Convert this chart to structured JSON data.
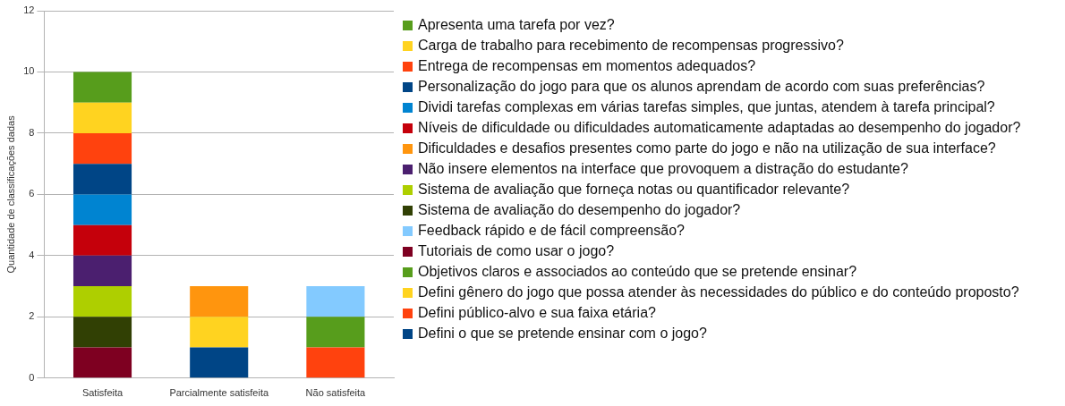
{
  "chart_data": {
    "type": "bar",
    "stacked": true,
    "ylabel": "Quantidade de classificações dadas",
    "categories": [
      "Satisfeita",
      "Parcialmente satisfeita",
      "Não satisfeita"
    ],
    "ylim": [
      0,
      12
    ],
    "yticks": [
      0,
      2,
      4,
      6,
      8,
      10,
      12
    ],
    "grid": "y",
    "legend": "right",
    "series": [
      {
        "name": "Defini o que se pretende ensinar com o jogo?",
        "color": "#004586",
        "values": [
          0,
          1,
          0
        ]
      },
      {
        "name": "Defini público-alvo e sua faixa etária?",
        "color": "#ff420e",
        "values": [
          0,
          0,
          1
        ]
      },
      {
        "name": "Defini gênero do jogo que possa atender às necessidades do público e do conteúdo proposto?",
        "color": "#ffd320",
        "values": [
          0,
          1,
          0
        ]
      },
      {
        "name": "Objetivos claros e associados ao conteúdo que se pretende ensinar?",
        "color": "#579d1c",
        "values": [
          0,
          0,
          1
        ]
      },
      {
        "name": "Tutoriais de como usar o jogo?",
        "color": "#7e0021",
        "values": [
          1,
          0,
          0
        ]
      },
      {
        "name": "Feedback rápido e de fácil compreensão?",
        "color": "#83caff",
        "values": [
          0,
          0,
          1
        ]
      },
      {
        "name": "Sistema de avaliação do desempenho do jogador?",
        "color": "#314004",
        "values": [
          1,
          0,
          0
        ]
      },
      {
        "name": "Sistema de avaliação que forneça notas ou quantificador relevante?",
        "color": "#aecf00",
        "values": [
          1,
          0,
          0
        ]
      },
      {
        "name": "Não insere elementos na interface que provoquem a distração do estudante?",
        "color": "#4b1f6f",
        "values": [
          1,
          0,
          0
        ]
      },
      {
        "name": "Dificuldades e desafios presentes como parte do jogo e não na utilização de sua interface?",
        "color": "#ff950e",
        "values": [
          0,
          1,
          0
        ]
      },
      {
        "name": "Níveis de dificuldade ou dificuldades automaticamente adaptadas ao desempenho do jogador?",
        "color": "#c5000b",
        "values": [
          1,
          0,
          0
        ]
      },
      {
        "name": "Dividi tarefas complexas em várias tarefas simples, que juntas, atendem à tarefa principal?",
        "color": "#0084d1",
        "values": [
          1,
          0,
          0
        ]
      },
      {
        "name": "Personalização do jogo para que os alunos aprendam de acordo com suas preferências?",
        "color": "#004586",
        "values": [
          1,
          0,
          0
        ]
      },
      {
        "name": "Entrega de recompensas em momentos adequados?",
        "color": "#ff420e",
        "values": [
          1,
          0,
          0
        ]
      },
      {
        "name": "Carga de trabalho para recebimento de recompensas progressivo?",
        "color": "#ffd320",
        "values": [
          1,
          0,
          0
        ]
      },
      {
        "name": "Apresenta uma tarefa por vez?",
        "color": "#579d1c",
        "values": [
          1,
          0,
          0
        ]
      }
    ]
  }
}
